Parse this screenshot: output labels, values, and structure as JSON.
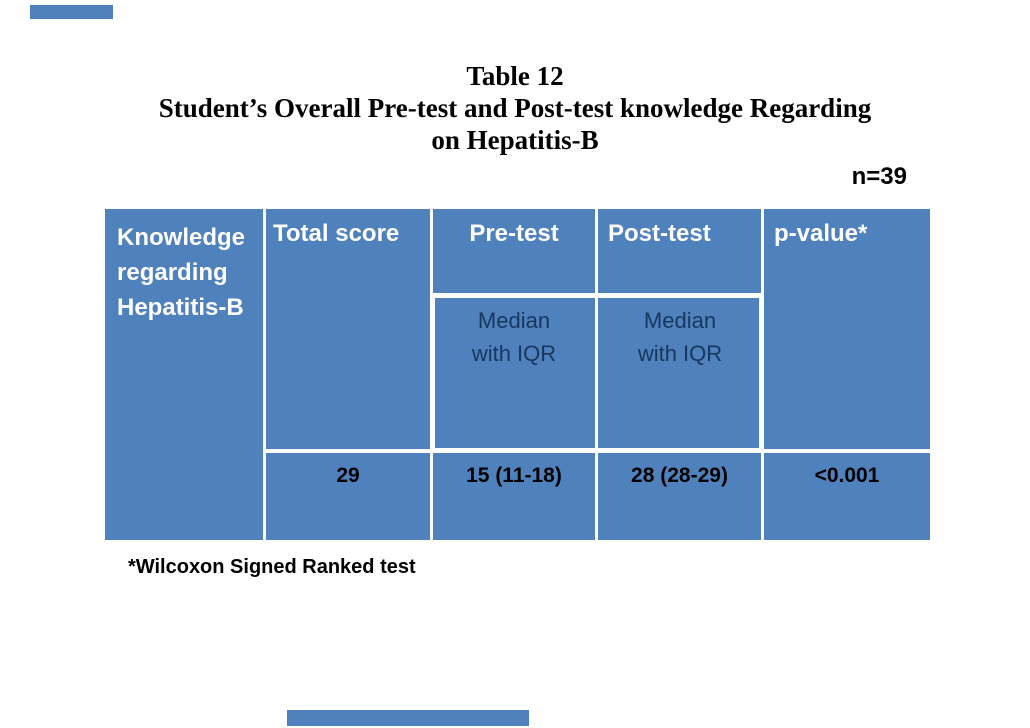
{
  "title": {
    "line1": "Table 12",
    "line2": "Student’s Overall Pre-test and Post-test knowledge Regarding",
    "line3": "on Hepatitis-B",
    "sample_size": "n=39"
  },
  "table": {
    "header": {
      "col1": "Knowledge\nregarding\nHepatitis-B",
      "col2": "Total score",
      "col3": "Pre-test",
      "col4": "Post-test",
      "col5": "p-value*"
    },
    "subheader": {
      "pretest_median": "Median\nwith IQR",
      "posttest_median": "Median\nwith IQR"
    },
    "row": {
      "total_score": "29",
      "pretest": "15 (11-18)",
      "posttest": "28 (28-29)",
      "p_value": "<0.001"
    }
  },
  "footnote": "*Wilcoxon Signed Ranked test",
  "colors": {
    "table_blue": "#4f81bd",
    "header_text": "#ffffff",
    "subheader_text": "#17375e",
    "data_text": "#000000",
    "title_text": "#000000"
  },
  "chart_data": {
    "type": "table",
    "title": "Table 12 Student’s Overall Pre-test and Post-test knowledge Regarding on Hepatitis-B",
    "sample_size": "n=39",
    "columns": [
      "Knowledge regarding Hepatitis-B",
      "Total score",
      "Pre-test Median with IQR",
      "Post-test Median with IQR",
      "p-value*"
    ],
    "rows": [
      [
        "",
        "29",
        "15 (11-18)",
        "28 (28-29)",
        "<0.001"
      ]
    ],
    "footnote": "*Wilcoxon Signed Ranked test"
  }
}
